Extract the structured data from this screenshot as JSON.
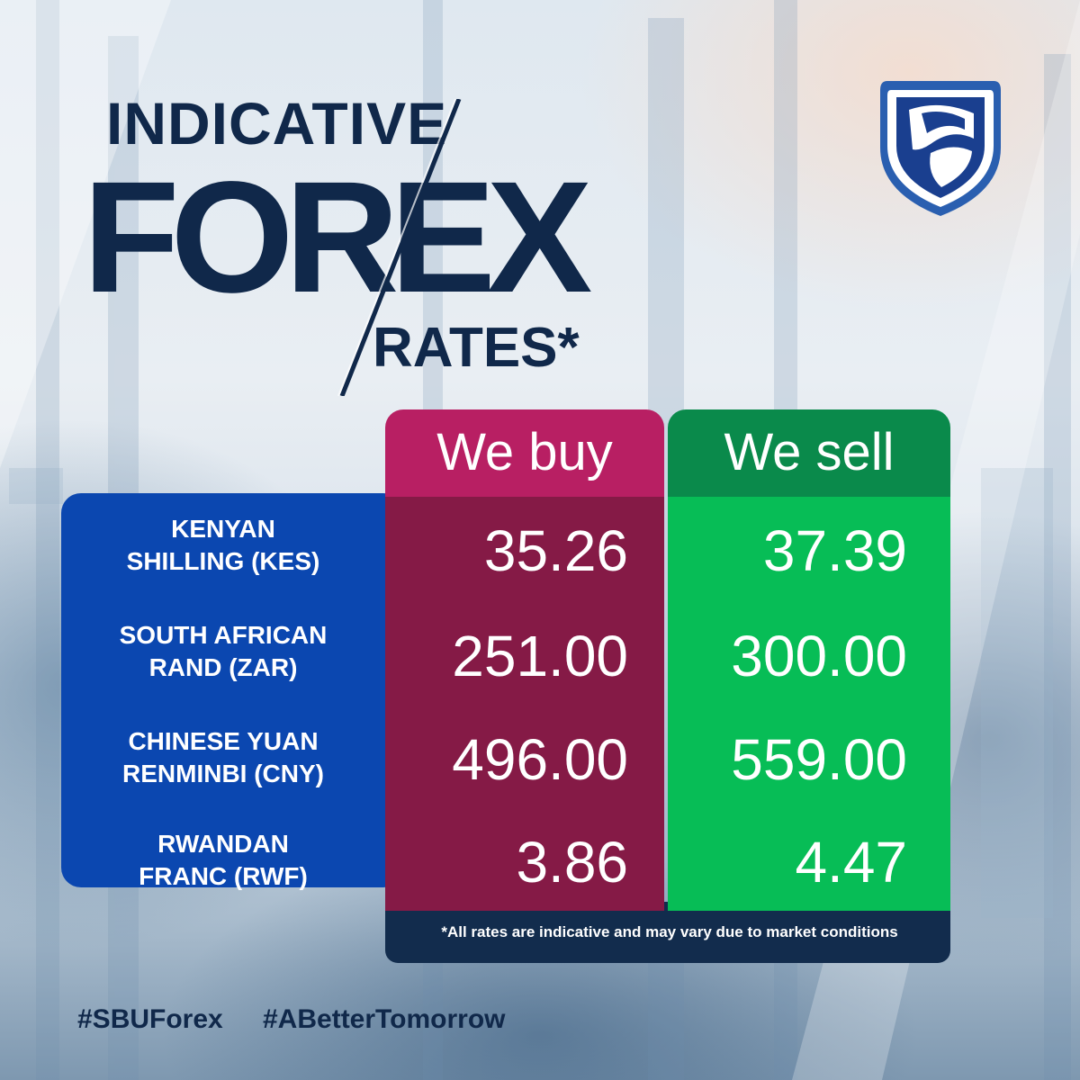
{
  "title": {
    "line1": "INDICATIVE",
    "line2": "FOREX",
    "line3": "RATES*"
  },
  "logo": {
    "icon": "bank-shield-logo",
    "colors": {
      "outer": "#2a5fb0",
      "inner": "#1a3f8f",
      "flag": "#ffffff"
    }
  },
  "table": {
    "headers": {
      "buy": "We buy",
      "sell": "We sell"
    },
    "rows": [
      {
        "currency_line1": "KENYAN",
        "currency_line2": "SHILLING (KES)",
        "buy": "35.26",
        "sell": "37.39"
      },
      {
        "currency_line1": "SOUTH AFRICAN",
        "currency_line2": "RAND (ZAR)",
        "buy": "251.00",
        "sell": "300.00"
      },
      {
        "currency_line1": "CHINESE YUAN",
        "currency_line2": "RENMINBI (CNY)",
        "buy": "496.00",
        "sell": "559.00"
      },
      {
        "currency_line1": "RWANDAN",
        "currency_line2": "FRANC (RWF)",
        "buy": "3.86",
        "sell": "4.47"
      }
    ],
    "footnote": "*All rates are indicative and may vary due to market conditions"
  },
  "hashtags": [
    "#SBUForex",
    "#ABetterTomorrow"
  ],
  "colors": {
    "navy": "#10284a",
    "currency_panel": "#0b47b0",
    "buy_header": "#b81f63",
    "buy_body": "#851a46",
    "sell_header": "#0a8a4b",
    "sell_body": "#07bd56"
  }
}
